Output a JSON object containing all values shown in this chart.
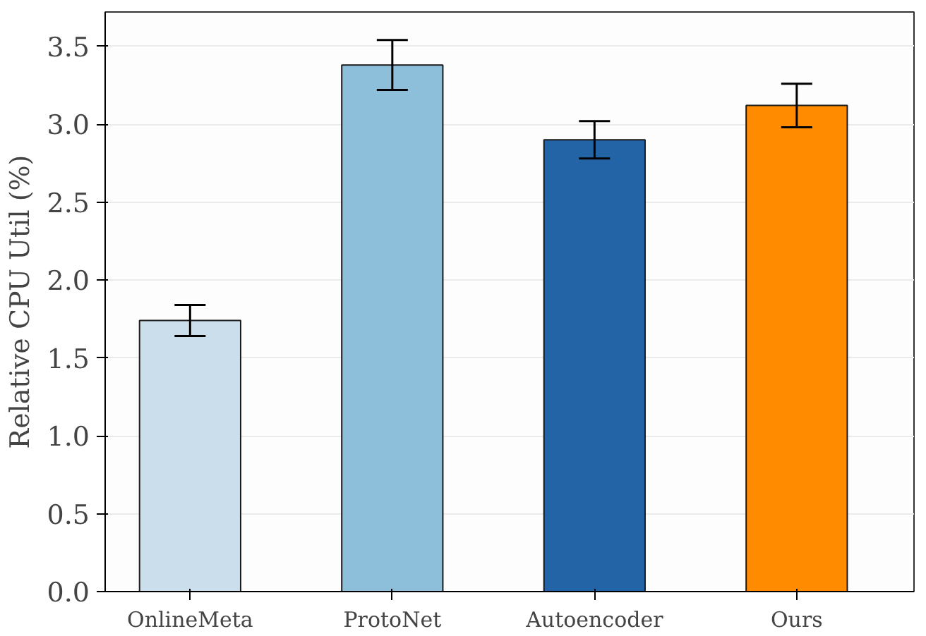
{
  "chart_data": {
    "type": "bar",
    "ylabel": "Relative CPU Util (%)",
    "categories": [
      "OnlineMeta",
      "ProtoNet",
      "Autoencoder",
      "Ours"
    ],
    "values": [
      1.74,
      3.38,
      2.9,
      3.12
    ],
    "errors": [
      0.1,
      0.16,
      0.12,
      0.14
    ],
    "colors": [
      "#cadeeb",
      "#8dbfdb",
      "#2264a6",
      "#ff8c00"
    ],
    "ylim": [
      0,
      3.72
    ],
    "yticks": [
      {
        "value": 0,
        "label": "0.0"
      },
      0.5,
      {
        "value": 1,
        "label": "1.0"
      },
      1.5,
      {
        "value": 2,
        "label": "2.0"
      },
      2.5,
      {
        "value": 3,
        "label": "3.0"
      },
      3.5
    ],
    "grid": "y"
  }
}
